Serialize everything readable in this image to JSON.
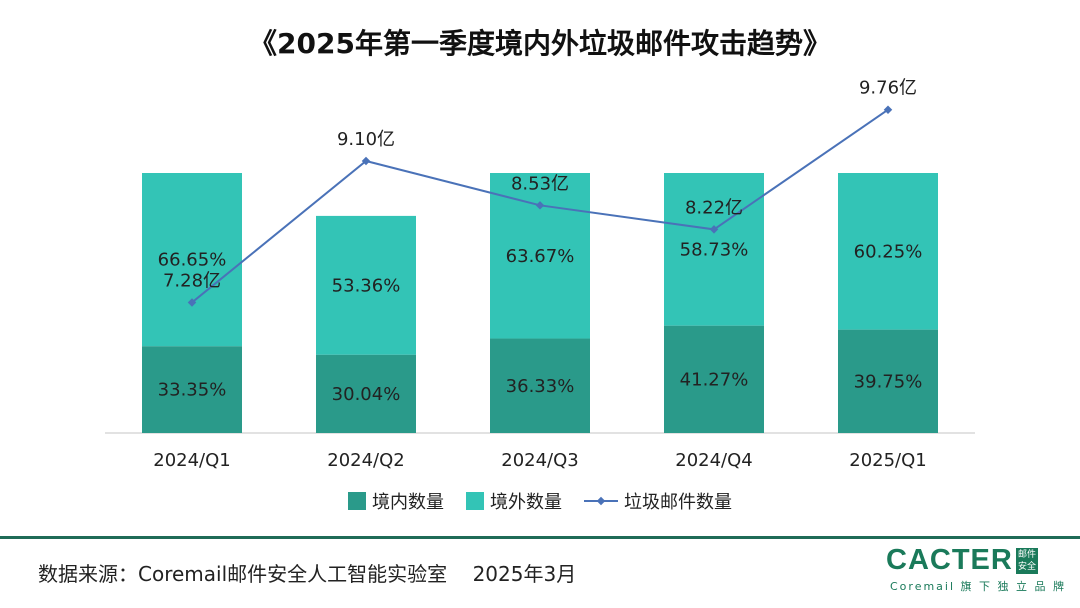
{
  "title": "《2025年第一季度境内外垃圾邮件攻击趋势》",
  "chart_data": {
    "type": "bar",
    "stacked": true,
    "title": "《2025年第一季度境内外垃圾邮件攻击趋势》",
    "categories": [
      "2024/Q1",
      "2024/Q2",
      "2024/Q3",
      "2024/Q4",
      "2025/Q1"
    ],
    "series": [
      {
        "name": "境内数量",
        "color": "#2a9a8a",
        "values": [
          33.35,
          30.04,
          36.33,
          41.27,
          39.75
        ],
        "labels": [
          "33.35%",
          "30.04%",
          "36.33%",
          "41.27%",
          "39.75%"
        ]
      },
      {
        "name": "境外数量",
        "color": "#33c4b6",
        "values": [
          66.65,
          53.36,
          63.67,
          58.73,
          60.25
        ],
        "labels": [
          "66.65%",
          "53.36%",
          "63.67%",
          "58.73%",
          "60.25%"
        ]
      }
    ],
    "line_series": {
      "name": "垃圾邮件数量",
      "color": "#4a72b8",
      "values": [
        7.28,
        9.1,
        8.53,
        8.22,
        9.76
      ],
      "labels": [
        "7.28亿",
        "9.10亿",
        "8.53亿",
        "8.22亿",
        "9.76亿"
      ]
    },
    "ylim_bars": [
      0,
      100
    ],
    "ylim_line": [
      5.6,
      10.4
    ],
    "legend_position": "bottom",
    "grid": false
  },
  "legend": {
    "domestic": "境内数量",
    "foreign": "境外数量",
    "line": "垃圾邮件数量"
  },
  "footer": {
    "source": "数据来源：Coremail邮件安全人工智能实验室    2025年3月"
  },
  "logo": {
    "word": "CACTER",
    "box_line1": "邮件",
    "box_line2": "安全",
    "subtitle": "Coremail 旗 下 独 立 品 牌"
  }
}
